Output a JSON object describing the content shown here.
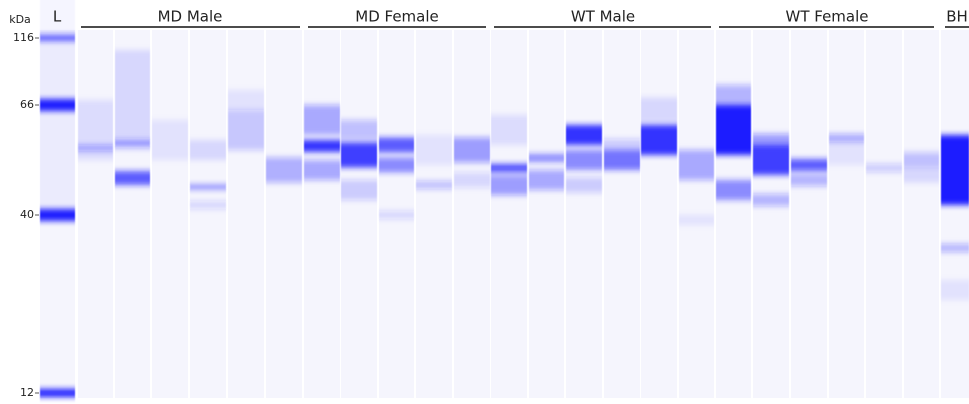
{
  "unit": "kDa",
  "ladder_label": "L",
  "groups": [
    "MD Male",
    "MD Female",
    "WT Male",
    "WT Female",
    "BH"
  ],
  "markers": [
    "116",
    "66",
    "40",
    "12"
  ]
}
